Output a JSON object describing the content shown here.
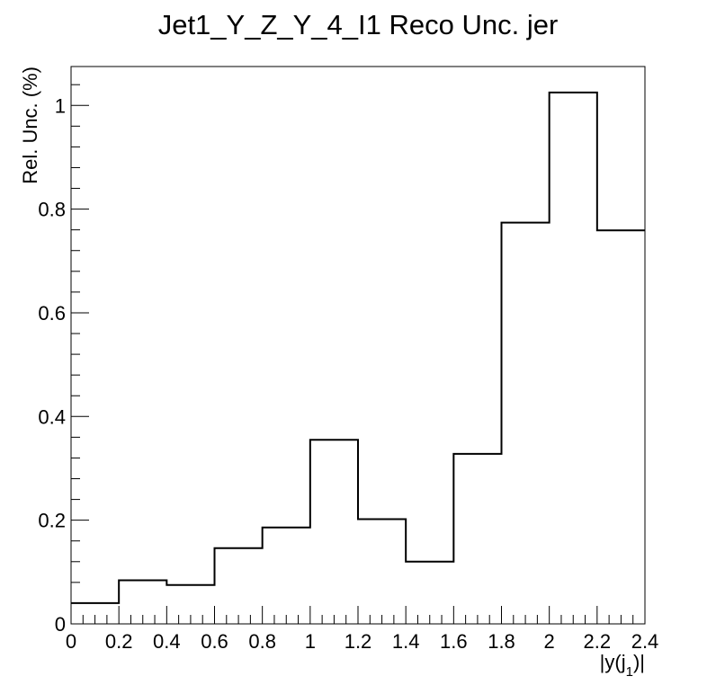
{
  "chart_data": {
    "type": "histogram-step",
    "title": "Jet1_Y_Z_Y_4_I1 Reco Unc. jer",
    "xlabel_main": "|y(j",
    "xlabel_sub": "1",
    "xlabel_tail": ")|",
    "ylabel": "Rel. Unc. (%)",
    "xlim": [
      0,
      2.4
    ],
    "ylim": [
      0,
      1.075
    ],
    "x_ticks": [
      "0",
      "0.2",
      "0.4",
      "0.6",
      "0.8",
      "1",
      "1.2",
      "1.4",
      "1.6",
      "1.8",
      "2",
      "2.2",
      "2.4"
    ],
    "y_ticks": [
      "0",
      "0.2",
      "0.4",
      "0.6",
      "0.8",
      "1"
    ],
    "bins": [
      {
        "lo": 0.0,
        "hi": 0.2,
        "value": 0.04
      },
      {
        "lo": 0.2,
        "hi": 0.4,
        "value": 0.084
      },
      {
        "lo": 0.4,
        "hi": 0.6,
        "value": 0.075
      },
      {
        "lo": 0.6,
        "hi": 0.8,
        "value": 0.146
      },
      {
        "lo": 0.8,
        "hi": 1.0,
        "value": 0.186
      },
      {
        "lo": 1.0,
        "hi": 1.2,
        "value": 0.355
      },
      {
        "lo": 1.2,
        "hi": 1.4,
        "value": 0.202
      },
      {
        "lo": 1.4,
        "hi": 1.6,
        "value": 0.12
      },
      {
        "lo": 1.6,
        "hi": 1.8,
        "value": 0.328
      },
      {
        "lo": 1.8,
        "hi": 2.0,
        "value": 0.774
      },
      {
        "lo": 2.0,
        "hi": 2.2,
        "value": 1.025
      },
      {
        "lo": 2.2,
        "hi": 2.4,
        "value": 0.759
      }
    ],
    "line_color": "#000000",
    "grid": false
  }
}
